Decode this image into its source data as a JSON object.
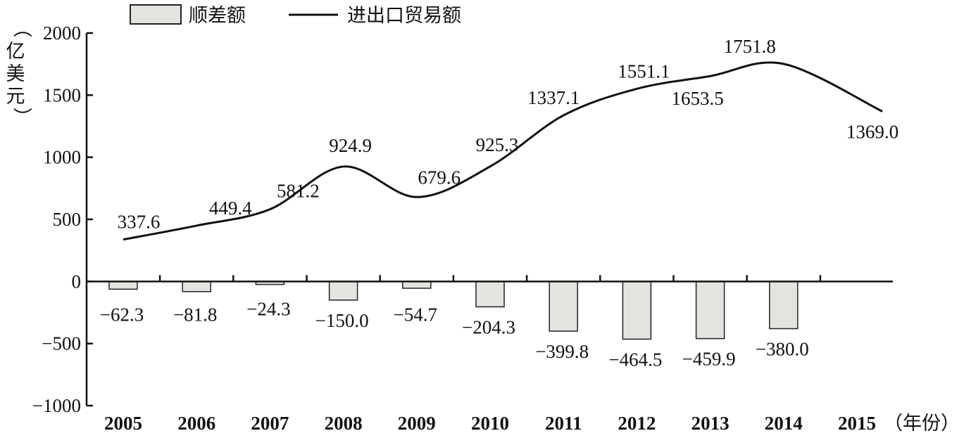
{
  "chart_data": {
    "type": "bar",
    "categories": [
      "2005",
      "2006",
      "2007",
      "2008",
      "2009",
      "2010",
      "2011",
      "2012",
      "2013",
      "2014",
      "2015"
    ],
    "series": [
      {
        "name": "顺差额",
        "type": "bar",
        "values": [
          -62.3,
          -81.8,
          -24.3,
          -150.0,
          -54.7,
          -204.3,
          -399.8,
          -464.5,
          -459.9,
          -380.0,
          null
        ],
        "labels": [
          "−62.3",
          "−81.8",
          "−24.3",
          "−150.0",
          "−54.7",
          "−204.3",
          "−399.8",
          "−464.5",
          "−459.9",
          "−380.0",
          ""
        ]
      },
      {
        "name": "进出口贸易额",
        "type": "line",
        "values": [
          337.6,
          449.4,
          581.2,
          924.9,
          679.6,
          925.3,
          1337.1,
          1551.1,
          1653.5,
          1751.8,
          1369.0
        ],
        "labels": [
          "337.6",
          "449.4",
          "581.2",
          "924.9",
          "679.6",
          "925.3",
          "1337.1",
          "1551.1",
          "1653.5",
          "1751.8",
          "1369.0"
        ]
      }
    ],
    "ylim": [
      -1000,
      2000
    ],
    "yticks": [
      -1000,
      -500,
      0,
      500,
      1000,
      1500,
      2000
    ],
    "ytick_labels": [
      "−1000",
      "−500",
      "0",
      "500",
      "1000",
      "1500",
      "2000"
    ],
    "ylabel": "（亿美元）",
    "xunit": "（年份）",
    "legend_position": "top-left",
    "grid": false,
    "colors": {
      "bar_fill": "#e3e4df",
      "bar_stroke": "#222222",
      "line": "#111111",
      "axis": "#111111"
    }
  }
}
